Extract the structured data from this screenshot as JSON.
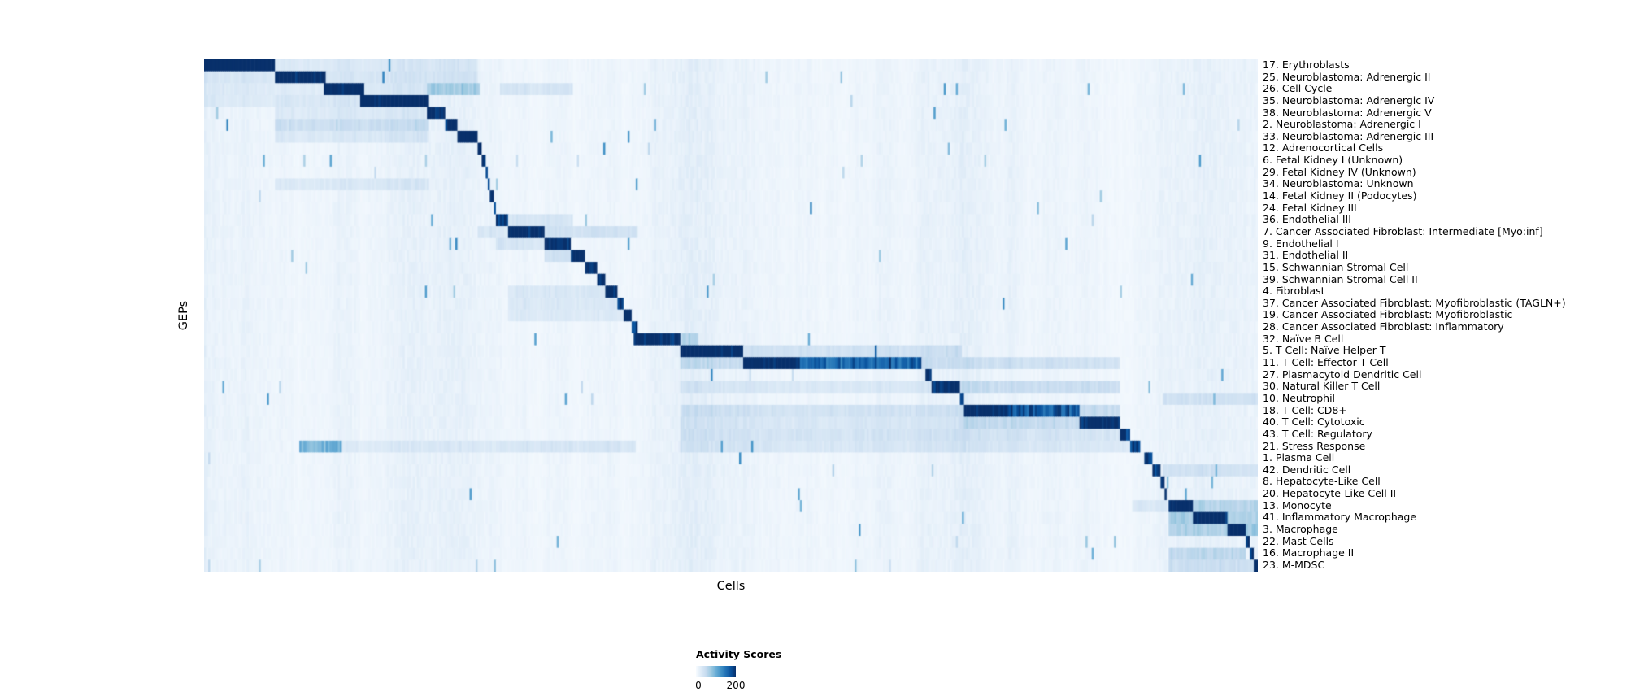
{
  "chart_data": {
    "type": "heatmap",
    "title": "",
    "xlabel": "Cells",
    "ylabel": "GEPs",
    "legend": {
      "title": "Activity Scores",
      "min": "0",
      "max": "200"
    },
    "value_range": [
      0,
      200
    ],
    "colormap": {
      "name": "Blues",
      "stops": [
        "#f7fbff",
        "#deebf7",
        "#c6dbef",
        "#9ecae1",
        "#6baed6",
        "#4292c6",
        "#2171b5",
        "#08519c",
        "#08306b"
      ]
    },
    "layout": {
      "grid": false,
      "legend_position": "bottom-center",
      "n_rows": 43
    },
    "rows": [
      {
        "label": "17. Erythroblasts",
        "segments": [
          [
            0.0,
            0.067,
            235
          ],
          [
            0.067,
            0.26,
            18
          ]
        ]
      },
      {
        "label": "25. Neuroblastoma: Adrenergic II",
        "segments": [
          [
            0.067,
            0.116,
            220
          ],
          [
            0.0,
            0.067,
            20
          ],
          [
            0.116,
            0.26,
            22
          ]
        ]
      },
      {
        "label": "26. Cell Cycle",
        "segments": [
          [
            0.114,
            0.152,
            215
          ],
          [
            0.212,
            0.262,
            55
          ],
          [
            0.0,
            0.114,
            15
          ],
          [
            0.152,
            0.212,
            20
          ],
          [
            0.28,
            0.35,
            25
          ]
        ]
      },
      {
        "label": "35. Neuroblastoma: Adrenergic IV",
        "segments": [
          [
            0.149,
            0.214,
            220
          ],
          [
            0.067,
            0.149,
            22
          ],
          [
            0.0,
            0.067,
            14
          ]
        ]
      },
      {
        "label": "38. Neuroblastoma: Adrenergic V",
        "segments": [
          [
            0.212,
            0.228,
            205
          ],
          [
            0.067,
            0.212,
            18
          ]
        ]
      },
      {
        "label": "2. Neuroblastoma: Adrenergic I",
        "segments": [
          [
            0.228,
            0.24,
            200
          ],
          [
            0.067,
            0.214,
            35
          ]
        ]
      },
      {
        "label": "33. Neuroblastoma: Adrenergic III",
        "segments": [
          [
            0.24,
            0.259,
            210
          ],
          [
            0.067,
            0.214,
            20
          ]
        ]
      },
      {
        "label": "12. Adrenocortical Cells",
        "segments": [
          [
            0.259,
            0.264,
            195
          ]
        ]
      },
      {
        "label": "6. Fetal Kidney I (Unknown)",
        "segments": [
          [
            0.264,
            0.267,
            185
          ]
        ]
      },
      {
        "label": "29. Fetal Kidney IV (Unknown)",
        "segments": [
          [
            0.267,
            0.27,
            185
          ]
        ]
      },
      {
        "label": "34. Neuroblastoma: Unknown",
        "segments": [
          [
            0.27,
            0.272,
            180
          ],
          [
            0.067,
            0.214,
            18
          ]
        ]
      },
      {
        "label": "14. Fetal Kidney II (Podocytes)",
        "segments": [
          [
            0.272,
            0.275,
            185
          ]
        ]
      },
      {
        "label": "24. Fetal Kidney III",
        "segments": [
          [
            0.275,
            0.277,
            185
          ]
        ]
      },
      {
        "label": "36. Endothelial III",
        "segments": [
          [
            0.277,
            0.288,
            200
          ],
          [
            0.288,
            0.35,
            25
          ]
        ]
      },
      {
        "label": "7. Cancer Associated Fibroblast: Intermediate [Myo:inf]",
        "segments": [
          [
            0.288,
            0.323,
            215
          ],
          [
            0.323,
            0.411,
            30
          ],
          [
            0.259,
            0.288,
            20
          ]
        ]
      },
      {
        "label": "9. Endothelial I",
        "segments": [
          [
            0.323,
            0.349,
            210
          ],
          [
            0.277,
            0.323,
            25
          ]
        ]
      },
      {
        "label": "31. Endothelial II",
        "segments": [
          [
            0.349,
            0.362,
            200
          ],
          [
            0.323,
            0.349,
            30
          ]
        ]
      },
      {
        "label": "15. Schwannian Stromal Cell",
        "segments": [
          [
            0.362,
            0.373,
            205
          ]
        ]
      },
      {
        "label": "39. Schwannian Stromal Cell II",
        "segments": [
          [
            0.373,
            0.38,
            195
          ]
        ]
      },
      {
        "label": "4. Fibroblast",
        "segments": [
          [
            0.38,
            0.392,
            210
          ],
          [
            0.288,
            0.38,
            22
          ]
        ]
      },
      {
        "label": "37. Cancer Associated Fibroblast: Myofibroblastic (TAGLN+)",
        "segments": [
          [
            0.392,
            0.399,
            200
          ],
          [
            0.288,
            0.392,
            20
          ]
        ]
      },
      {
        "label": "19. Cancer Associated Fibroblast: Myofibroblastic",
        "segments": [
          [
            0.399,
            0.406,
            200
          ],
          [
            0.288,
            0.399,
            18
          ]
        ]
      },
      {
        "label": "28. Cancer Associated Fibroblast: Inflammatory",
        "segments": [
          [
            0.406,
            0.411,
            195
          ]
        ]
      },
      {
        "label": "32. Naïve B Cell",
        "segments": [
          [
            0.408,
            0.452,
            200
          ],
          [
            0.452,
            0.47,
            40
          ]
        ]
      },
      {
        "label": "5. T Cell: Naïve Helper T",
        "segments": [
          [
            0.452,
            0.512,
            210
          ],
          [
            0.512,
            0.72,
            30
          ]
        ]
      },
      {
        "label": "11. T Cell: Effector T Cell",
        "segments": [
          [
            0.512,
            0.565,
            220
          ],
          [
            0.565,
            0.68,
            150
          ],
          [
            0.68,
            0.87,
            30
          ],
          [
            0.452,
            0.512,
            35
          ]
        ]
      },
      {
        "label": "27. Plasmacytoid Dendritic Cell",
        "segments": [
          [
            0.684,
            0.69,
            205
          ]
        ]
      },
      {
        "label": "30. Natural Killer T Cell",
        "segments": [
          [
            0.69,
            0.717,
            200
          ],
          [
            0.717,
            0.87,
            35
          ],
          [
            0.452,
            0.69,
            20
          ]
        ]
      },
      {
        "label": "10. Neutrophil",
        "segments": [
          [
            0.717,
            0.722,
            195
          ],
          [
            0.91,
            1.0,
            25
          ]
        ]
      },
      {
        "label": "18. T Cell: CD8+",
        "segments": [
          [
            0.722,
            0.762,
            215
          ],
          [
            0.762,
            0.83,
            160
          ],
          [
            0.452,
            0.722,
            28
          ],
          [
            0.83,
            0.87,
            40
          ]
        ]
      },
      {
        "label": "40. T Cell: Cytotoxic",
        "segments": [
          [
            0.83,
            0.87,
            205
          ],
          [
            0.722,
            0.83,
            40
          ],
          [
            0.452,
            0.722,
            22
          ]
        ]
      },
      {
        "label": "43. T Cell: Regulatory",
        "segments": [
          [
            0.87,
            0.878,
            195
          ],
          [
            0.452,
            0.87,
            26
          ]
        ]
      },
      {
        "label": "21. Stress Response",
        "segments": [
          [
            0.878,
            0.888,
            190
          ],
          [
            0.09,
            0.13,
            85
          ],
          [
            0.452,
            0.878,
            22
          ],
          [
            0.28,
            0.41,
            25
          ],
          [
            0.13,
            0.28,
            15
          ]
        ]
      },
      {
        "label": "1. Plasma Cell",
        "segments": [
          [
            0.892,
            0.9,
            200
          ]
        ]
      },
      {
        "label": "42. Dendritic Cell",
        "segments": [
          [
            0.9,
            0.907,
            195
          ],
          [
            0.91,
            1.0,
            25
          ]
        ]
      },
      {
        "label": "8. Hepatocyte-Like Cell",
        "segments": [
          [
            0.907,
            0.911,
            185
          ]
        ]
      },
      {
        "label": "20. Hepatocyte-Like Cell II",
        "segments": [
          [
            0.911,
            0.914,
            185
          ]
        ]
      },
      {
        "label": "13. Monocyte",
        "segments": [
          [
            0.916,
            0.938,
            215
          ],
          [
            0.938,
            1.0,
            45
          ],
          [
            0.88,
            0.916,
            20
          ]
        ]
      },
      {
        "label": "41. Inflammatory Macrophage",
        "segments": [
          [
            0.938,
            0.972,
            210
          ],
          [
            0.916,
            0.938,
            55
          ],
          [
            0.972,
            1.0,
            50
          ]
        ]
      },
      {
        "label": "3. Macrophage",
        "segments": [
          [
            0.972,
            0.988,
            210
          ],
          [
            0.916,
            0.972,
            50
          ],
          [
            0.988,
            1.0,
            60
          ]
        ]
      },
      {
        "label": "22. Mast Cells",
        "segments": [
          [
            0.988,
            0.992,
            195
          ]
        ]
      },
      {
        "label": "16. Macrophage II",
        "segments": [
          [
            0.992,
            0.996,
            195
          ],
          [
            0.916,
            0.988,
            40
          ]
        ]
      },
      {
        "label": "23. M-MDSC",
        "segments": [
          [
            0.996,
            1.0,
            210
          ],
          [
            0.916,
            0.996,
            30
          ]
        ]
      }
    ]
  }
}
